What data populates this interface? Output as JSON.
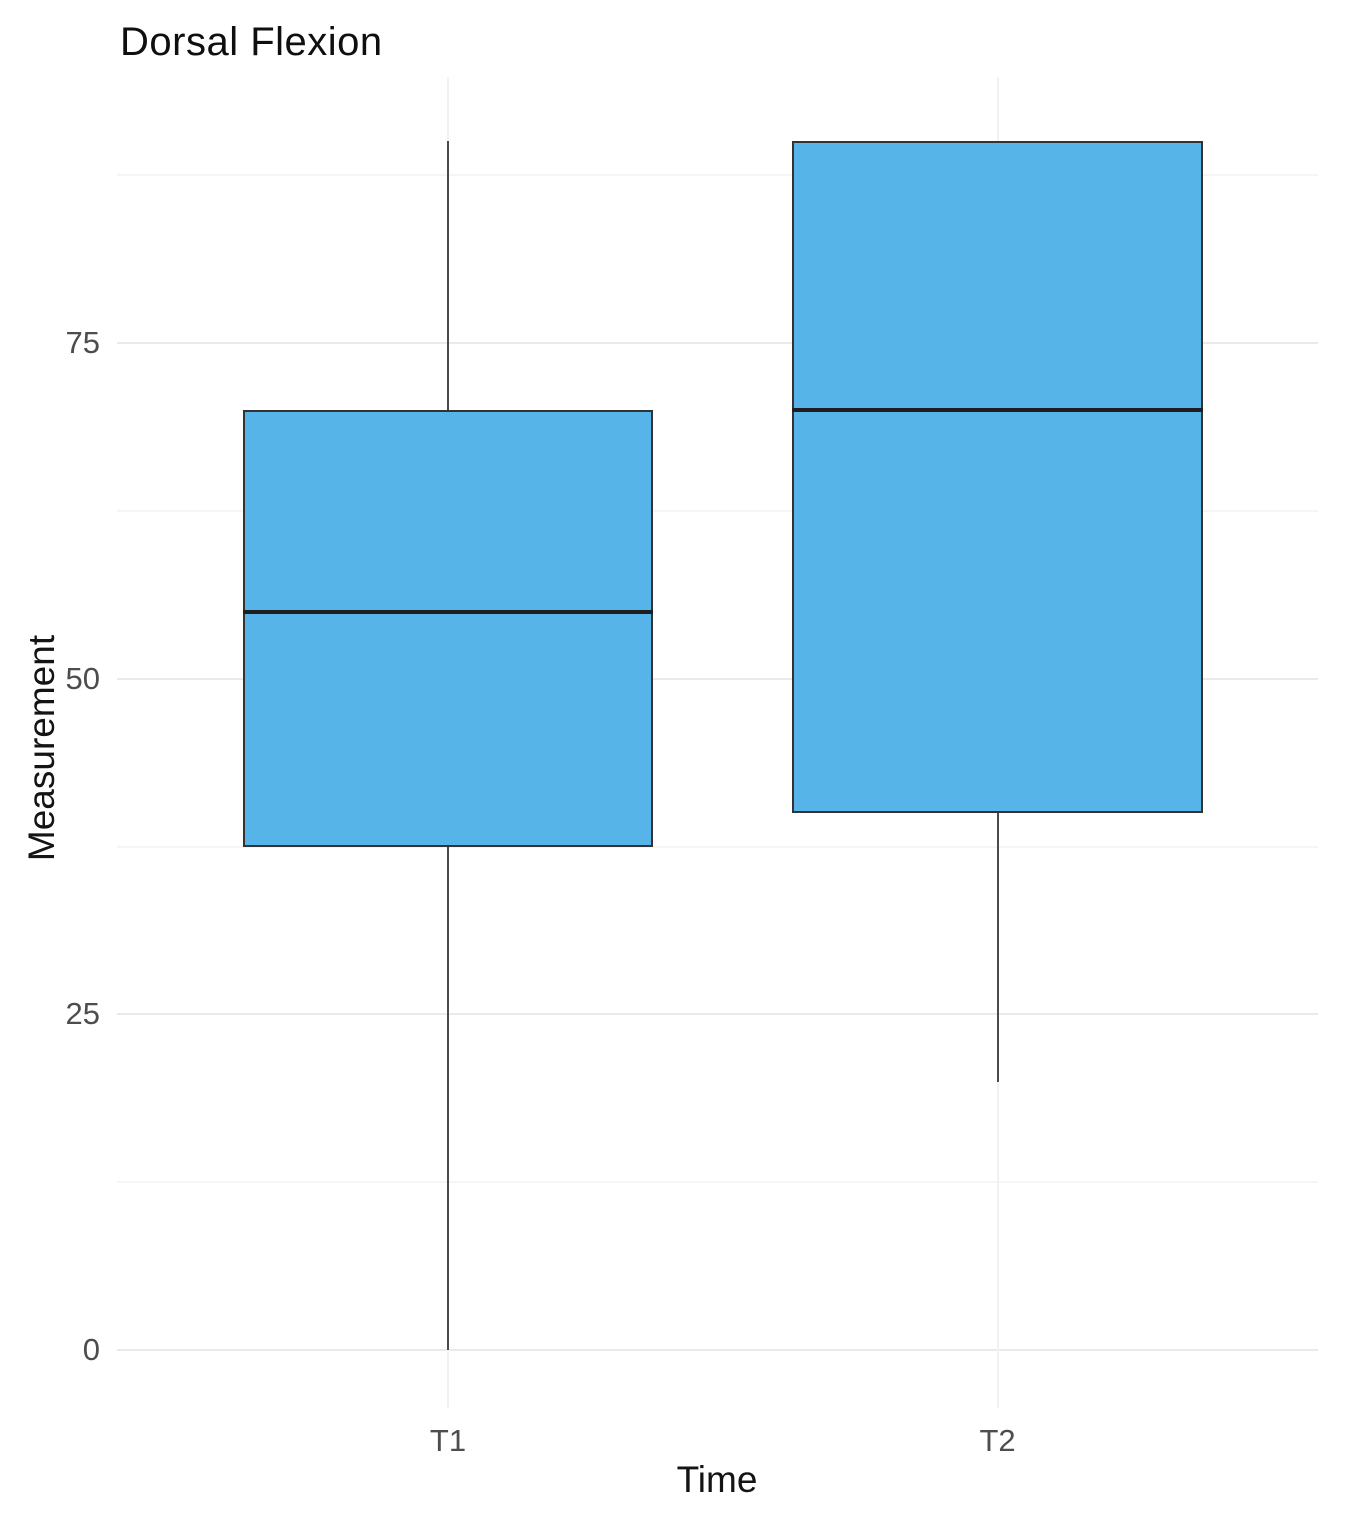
{
  "chart_data": {
    "type": "box",
    "title": "Dorsal Flexion",
    "xlabel": "Time",
    "ylabel": "Measurement",
    "categories": [
      "T1",
      "T2"
    ],
    "series": [
      {
        "name": "T1",
        "whisker_low": 0,
        "q1": 37.5,
        "median": 55,
        "q3": 70,
        "whisker_high": 90
      },
      {
        "name": "T2",
        "whisker_low": 20,
        "q1": 40,
        "median": 70,
        "q3": 90,
        "whisker_high": 90
      }
    ],
    "y_ticks": [
      0,
      25,
      50,
      75
    ],
    "y_minor_ticks": [
      12.5,
      37.5,
      62.5,
      87.5
    ],
    "ylim": [
      -4.3,
      94.8
    ],
    "grid": "horizontal major+minor lines, vertical line at each category, no axis lines, no ticks",
    "legend": "none",
    "colors": {
      "box_fill": "#56B4E9",
      "box_border": "#333333",
      "median_line": "#1f1f1f",
      "whisker": "#4a4a4a",
      "grid_major": "#eaeaea",
      "grid_minor": "#f5f5f5",
      "grid_vertical": "#f1f1f1",
      "tick_label": "#4d4d4d",
      "axis_title": "#141414",
      "title": "#0f0f0f",
      "background": "#ffffff"
    }
  }
}
